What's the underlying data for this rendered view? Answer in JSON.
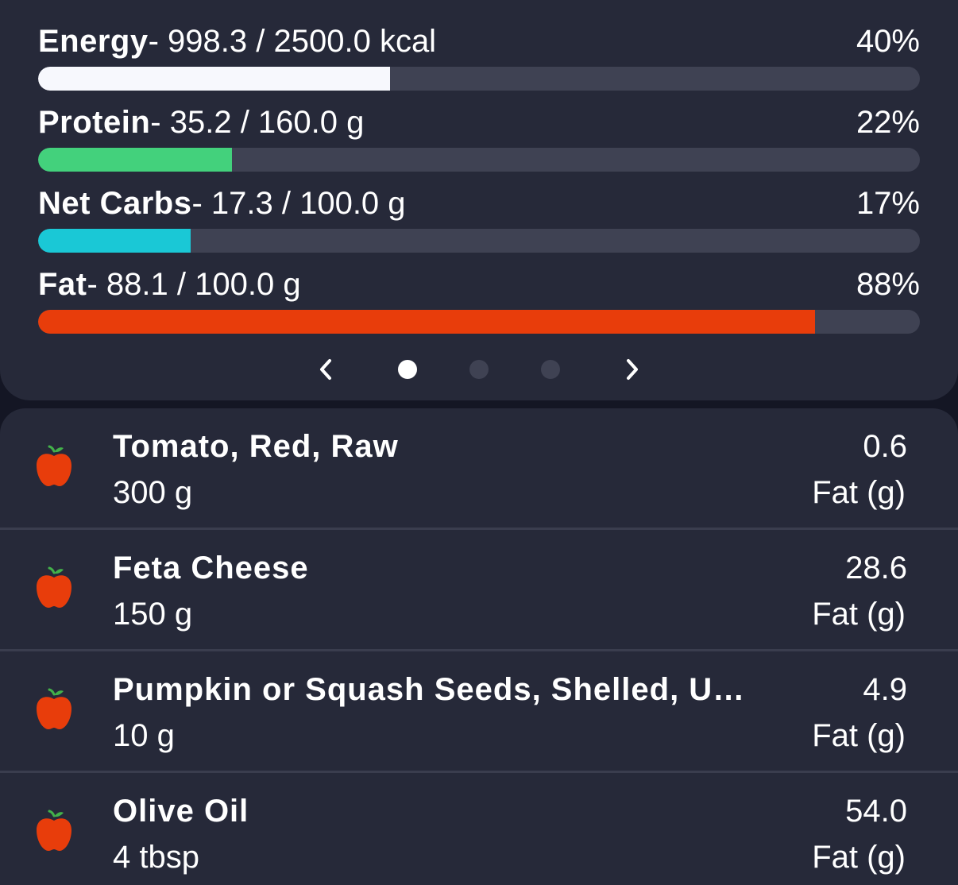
{
  "nutrients": [
    {
      "name": "Energy",
      "amount": "- 998.3 / 2500.0 kcal",
      "percent_label": "40%",
      "fraction": 0.3993,
      "color": "#f7f8fd"
    },
    {
      "name": "Protein",
      "amount": "- 35.2 / 160.0 g",
      "percent_label": "22%",
      "fraction": 0.22,
      "color": "#43d17c"
    },
    {
      "name": "Net Carbs",
      "amount": "- 17.3 / 100.0 g",
      "percent_label": "17%",
      "fraction": 0.173,
      "color": "#1ac8d6"
    },
    {
      "name": "Fat",
      "amount": "- 88.1 / 100.0 g",
      "percent_label": "88%",
      "fraction": 0.881,
      "color": "#e83d0b"
    }
  ],
  "pager": {
    "prev_icon": "chevron-left-icon",
    "next_icon": "chevron-right-icon",
    "page_count": 3,
    "active_page": 1
  },
  "foods": [
    {
      "name": "Tomato, Red, Raw",
      "quantity": "300 g",
      "value": "0.6",
      "unit": "Fat (g)",
      "icon": "apple-icon"
    },
    {
      "name": "Feta Cheese",
      "quantity": "150 g",
      "value": "28.6",
      "unit": "Fat (g)",
      "icon": "apple-icon"
    },
    {
      "name": "Pumpkin or Squash Seeds, Shelled, U…",
      "quantity": "10 g",
      "value": "4.9",
      "unit": "Fat (g)",
      "icon": "apple-icon"
    },
    {
      "name": "Olive Oil",
      "quantity": "4 tbsp",
      "value": "54.0",
      "unit": "Fat (g)",
      "icon": "apple-icon"
    }
  ],
  "colors": {
    "background": "#141624",
    "card": "#262939",
    "track": "#3f4253",
    "apple": "#e83d0b",
    "leaf": "#43b14a"
  }
}
